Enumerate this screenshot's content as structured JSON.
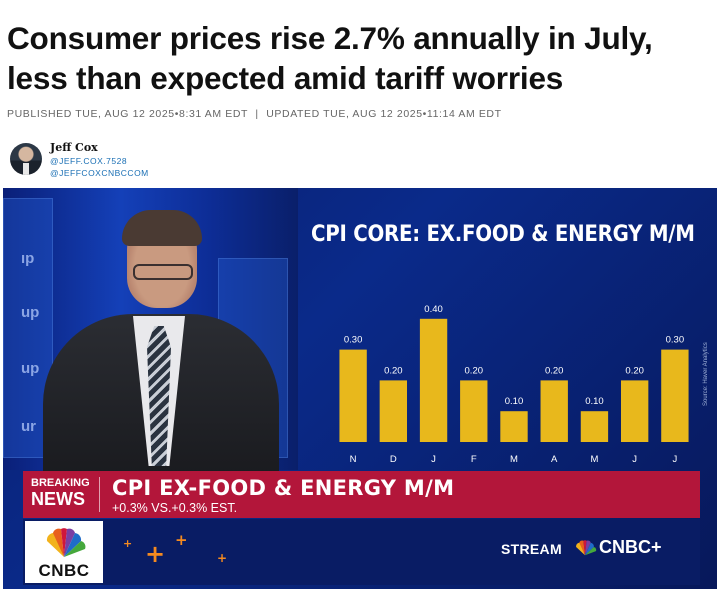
{
  "article": {
    "headline": "Consumer prices rise 2.7% annually in July, less than expected amid tariff worries",
    "published": "PUBLISHED TUE, AUG 12 2025•8:31 AM EDT",
    "separator": "|",
    "updated": "UPDATED TUE, AUG 12 2025•11:14 AM EDT"
  },
  "author": {
    "name": "Jeff Cox",
    "handle1": "@JEFF.COX.7528",
    "handle2": "@JEFFCOXCNBCCOM"
  },
  "video": {
    "background_words": [
      "ıp",
      "up",
      "up",
      "ur"
    ],
    "chart_title": "CPI CORE: EX.FOOD & ENERGY M/M",
    "source_note": "Source: Haver Analytics",
    "ticker": {
      "tag_top": "BREAKING",
      "tag_bottom": "NEWS",
      "headline": "CPI EX-FOOD & ENERGY M/M",
      "sub": "+0.3% VS.+0.3% EST."
    },
    "logo_text": "CNBC",
    "stream_label": "STREAM",
    "brand_label": "CNBC+",
    "colors": {
      "bar": "#e8b81c",
      "ticker_red": "#b3163a",
      "navy": "#091c64",
      "accent_orange": "#f58a1f"
    }
  },
  "chart_data": {
    "type": "bar",
    "title": "CPI CORE: EX.FOOD & ENERGY M/M",
    "categories": [
      "N",
      "D",
      "J",
      "F",
      "M",
      "A",
      "M",
      "J",
      "J"
    ],
    "values": [
      0.3,
      0.2,
      0.4,
      0.2,
      0.1,
      0.2,
      0.1,
      0.2,
      0.3
    ],
    "data_labels": [
      "0.30",
      "0.20",
      "0.40",
      "0.20",
      "0.10",
      "0.20",
      "0.10",
      "0.20",
      "0.30"
    ],
    "ylim": [
      0,
      0.5
    ],
    "grid": false,
    "legend": "none",
    "xlabel": "",
    "ylabel": ""
  }
}
